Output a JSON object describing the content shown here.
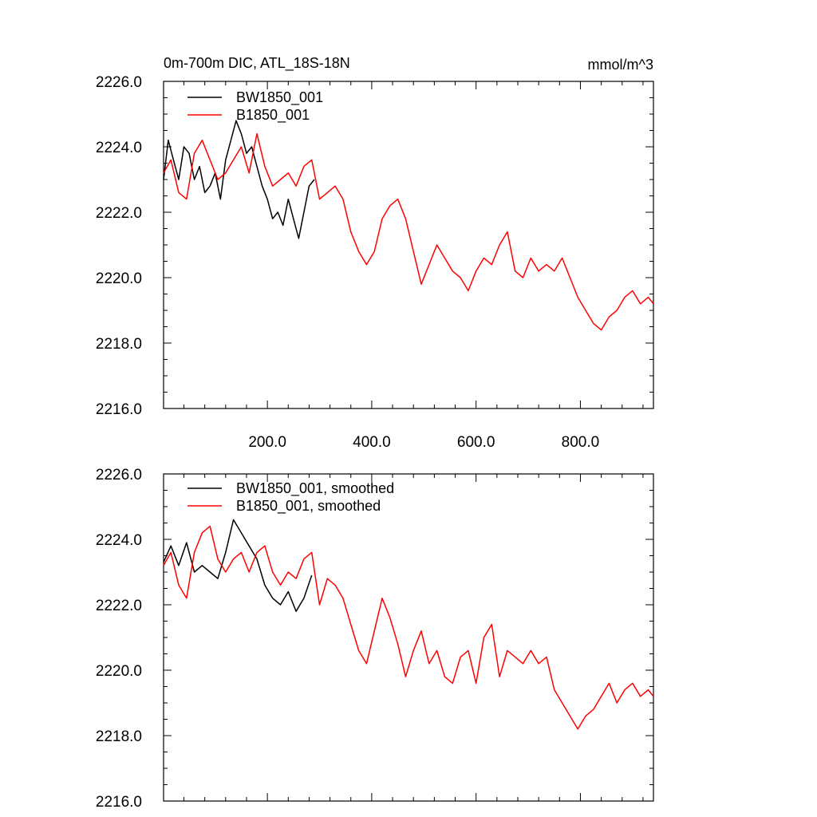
{
  "chart_data": [
    {
      "type": "line",
      "title": "0m-700m DIC, ATL_18S-18N",
      "units": "mmol/m^3",
      "xlim": [
        1,
        940
      ],
      "ylim": [
        2216,
        2226
      ],
      "x_ticks": [
        200,
        400,
        600,
        800
      ],
      "x_tick_labels": [
        "200.0",
        "400.0",
        "600.0",
        "800.0"
      ],
      "y_ticks": [
        2216,
        2218,
        2220,
        2222,
        2224,
        2226
      ],
      "y_tick_labels": [
        "2216.0",
        "2218.0",
        "2220.0",
        "2222.0",
        "2224.0",
        "2226.0"
      ],
      "legend_position": "top-left",
      "series": [
        {
          "name": "BW1850_001",
          "color": "#000000",
          "x": [
            1,
            10,
            20,
            30,
            40,
            50,
            60,
            70,
            80,
            90,
            100,
            110,
            120,
            130,
            140,
            150,
            160,
            170,
            180,
            190,
            200,
            210,
            220,
            230,
            240,
            250,
            260,
            270,
            280,
            290
          ],
          "y": [
            2223.0,
            2224.2,
            2223.6,
            2223.0,
            2224.0,
            2223.8,
            2223.0,
            2223.4,
            2222.6,
            2222.8,
            2223.2,
            2222.4,
            2223.6,
            2224.2,
            2224.8,
            2224.4,
            2223.8,
            2224.0,
            2223.4,
            2222.8,
            2222.4,
            2221.8,
            2222.0,
            2221.6,
            2222.4,
            2221.8,
            2221.2,
            2222.0,
            2222.8,
            2223.0
          ]
        },
        {
          "name": "B1850_001",
          "color": "#ff0000",
          "x": [
            1,
            15,
            30,
            45,
            60,
            75,
            90,
            105,
            120,
            135,
            150,
            165,
            180,
            195,
            210,
            225,
            240,
            255,
            270,
            285,
            300,
            315,
            330,
            345,
            360,
            375,
            390,
            405,
            420,
            435,
            450,
            465,
            480,
            495,
            510,
            525,
            540,
            555,
            570,
            585,
            600,
            615,
            630,
            645,
            660,
            675,
            690,
            705,
            720,
            735,
            750,
            765,
            780,
            795,
            810,
            825,
            840,
            855,
            870,
            885,
            900,
            915,
            930,
            940
          ],
          "y": [
            2223.2,
            2223.6,
            2222.6,
            2222.4,
            2223.8,
            2224.2,
            2223.6,
            2223.0,
            2223.2,
            2223.6,
            2224.0,
            2223.2,
            2224.4,
            2223.4,
            2222.8,
            2223.0,
            2223.2,
            2222.8,
            2223.4,
            2223.6,
            2222.4,
            2222.6,
            2222.8,
            2222.4,
            2221.4,
            2220.8,
            2220.4,
            2220.8,
            2221.8,
            2222.2,
            2222.4,
            2221.8,
            2220.8,
            2219.8,
            2220.4,
            2221.0,
            2220.6,
            2220.2,
            2220.0,
            2219.6,
            2220.2,
            2220.6,
            2220.4,
            2221.0,
            2221.4,
            2220.2,
            2220.0,
            2220.6,
            2220.2,
            2220.4,
            2220.2,
            2220.6,
            2220.0,
            2219.4,
            2219.0,
            2218.6,
            2218.4,
            2218.8,
            2219.0,
            2219.4,
            2219.6,
            2219.2,
            2219.4,
            2219.2
          ]
        }
      ]
    },
    {
      "type": "line",
      "title": "",
      "xlim": [
        1,
        940
      ],
      "ylim": [
        2216,
        2226
      ],
      "y_ticks": [
        2216,
        2218,
        2220,
        2222,
        2224,
        2226
      ],
      "y_tick_labels": [
        "2216.0",
        "2218.0",
        "2220.0",
        "2222.0",
        "2224.0",
        "2226.0"
      ],
      "legend_position": "top-left",
      "series": [
        {
          "name": "BW1850_001, smoothed",
          "color": "#000000",
          "x": [
            1,
            15,
            30,
            45,
            60,
            75,
            90,
            105,
            120,
            135,
            150,
            165,
            180,
            195,
            210,
            225,
            240,
            255,
            270,
            285
          ],
          "y": [
            2223.3,
            2223.8,
            2223.2,
            2223.9,
            2223.0,
            2223.2,
            2223.0,
            2222.8,
            2223.6,
            2224.6,
            2224.2,
            2223.8,
            2223.4,
            2222.6,
            2222.2,
            2222.0,
            2222.4,
            2221.8,
            2222.2,
            2222.9
          ]
        },
        {
          "name": "B1850_001, smoothed",
          "color": "#ff0000",
          "x": [
            1,
            15,
            30,
            45,
            60,
            75,
            90,
            105,
            120,
            135,
            150,
            165,
            180,
            195,
            210,
            225,
            240,
            255,
            270,
            285,
            300,
            315,
            330,
            345,
            360,
            375,
            390,
            405,
            420,
            435,
            450,
            465,
            480,
            495,
            510,
            525,
            540,
            555,
            570,
            585,
            600,
            615,
            630,
            645,
            660,
            675,
            690,
            705,
            720,
            735,
            750,
            765,
            780,
            795,
            810,
            825,
            840,
            855,
            870,
            885,
            900,
            915,
            930,
            940
          ],
          "y": [
            2223.2,
            2223.6,
            2222.6,
            2222.2,
            2223.6,
            2224.2,
            2224.4,
            2223.4,
            2223.0,
            2223.4,
            2223.6,
            2223.0,
            2223.6,
            2223.8,
            2223.0,
            2222.6,
            2223.0,
            2222.8,
            2223.4,
            2223.6,
            2222.0,
            2222.8,
            2222.6,
            2222.2,
            2221.4,
            2220.6,
            2220.2,
            2221.2,
            2222.2,
            2221.6,
            2220.8,
            2219.8,
            2220.6,
            2221.2,
            2220.2,
            2220.6,
            2219.8,
            2219.6,
            2220.4,
            2220.6,
            2219.6,
            2221.0,
            2221.4,
            2219.8,
            2220.6,
            2220.4,
            2220.2,
            2220.6,
            2220.2,
            2220.4,
            2219.4,
            2219.0,
            2218.6,
            2218.2,
            2218.6,
            2218.8,
            2219.2,
            2219.6,
            2219.0,
            2219.4,
            2219.6,
            2219.2,
            2219.4,
            2219.2
          ]
        }
      ]
    }
  ]
}
